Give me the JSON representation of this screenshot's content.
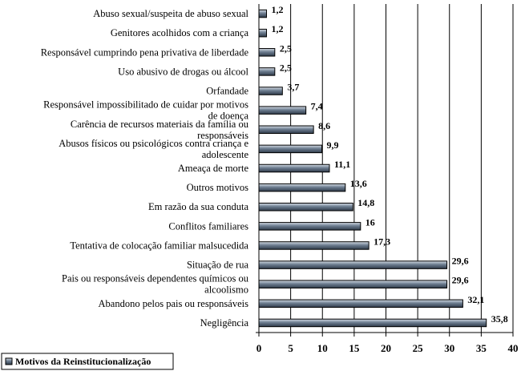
{
  "chart_data": {
    "type": "bar",
    "orientation": "horizontal",
    "categories": [
      "Abuso sexual/suspeita de abuso sexual",
      "Genitores acolhidos com a criança",
      "Responsável cumprindo pena privativa de liberdade",
      "Uso abusivo de drogas ou álcool",
      "Orfandade",
      "Responsável impossibilitado de cuidar por motivos de doença",
      "Carência de recursos materiais da família ou responsáveis",
      "Abusos físicos ou psicológicos contra criança e adolescente",
      "Ameaça de morte",
      "Outros motivos",
      "Em razão da sua conduta",
      "Conflitos familiares",
      "Tentativa de colocação familiar malsucedida",
      "Situação de rua",
      "Pais ou responsáveis dependentes químicos ou alcoolismo",
      "Abandono pelos pais ou responsáveis",
      "Negligência"
    ],
    "series": [
      {
        "name": "Motivos da Reinstitucionalização",
        "values": [
          1.2,
          1.2,
          2.5,
          2.5,
          3.7,
          7.4,
          8.6,
          9.9,
          11.1,
          13.6,
          14.8,
          16,
          17.3,
          29.6,
          29.6,
          32.1,
          35.8
        ]
      }
    ],
    "value_labels": [
      "1,2",
      "1,2",
      "2,5",
      "2,5",
      "3,7",
      "7,4",
      "8,6",
      "9,9",
      "11,1",
      "13,6",
      "14,8",
      "16",
      "17,3",
      "29,6",
      "29,6",
      "32,1",
      "35,8"
    ],
    "xlim": [
      0,
      40
    ],
    "xticks": [
      0,
      5,
      10,
      15,
      20,
      25,
      30,
      35,
      40
    ],
    "grid": true,
    "legend": "bottom-left",
    "bar_color": "#4f5f72"
  }
}
